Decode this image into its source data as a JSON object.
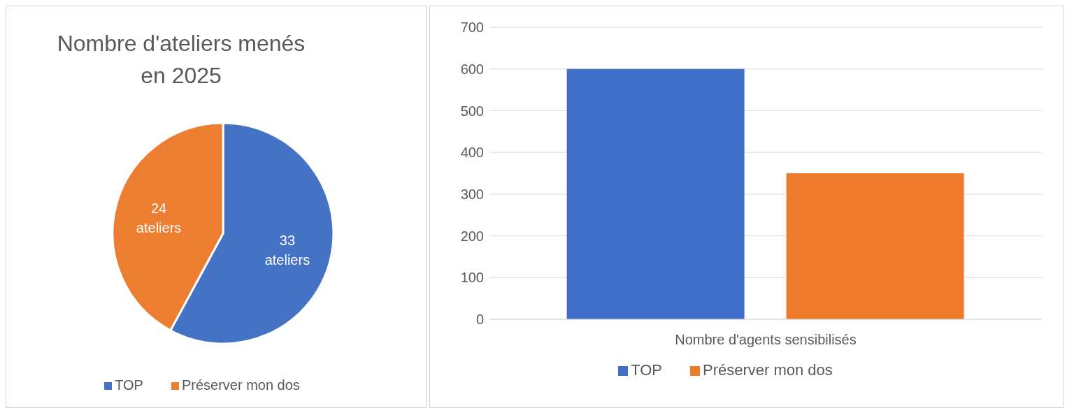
{
  "chart_data": [
    {
      "type": "pie",
      "title": "Nombre d'ateliers menés en 2025",
      "categories": [
        "TOP",
        "Préserver mon dos"
      ],
      "values": [
        33,
        24
      ],
      "colors": [
        "#4472c4",
        "#ed7d31"
      ],
      "value_labels": [
        "33 ateliers",
        "24 ateliers"
      ],
      "legend": "bottom"
    },
    {
      "type": "bar",
      "categories": [
        "Nombre d'agents sensibilisés"
      ],
      "series": [
        {
          "name": "TOP",
          "color": "#3f6fc9",
          "values": [
            600
          ]
        },
        {
          "name": "Préserver mon dos",
          "color": "#ee7a2c",
          "values": [
            350
          ]
        }
      ],
      "ylim": [
        0,
        700
      ],
      "yticks": [
        0,
        100,
        200,
        300,
        400,
        500,
        600,
        700
      ],
      "grid": "y",
      "legend": "bottom"
    }
  ]
}
